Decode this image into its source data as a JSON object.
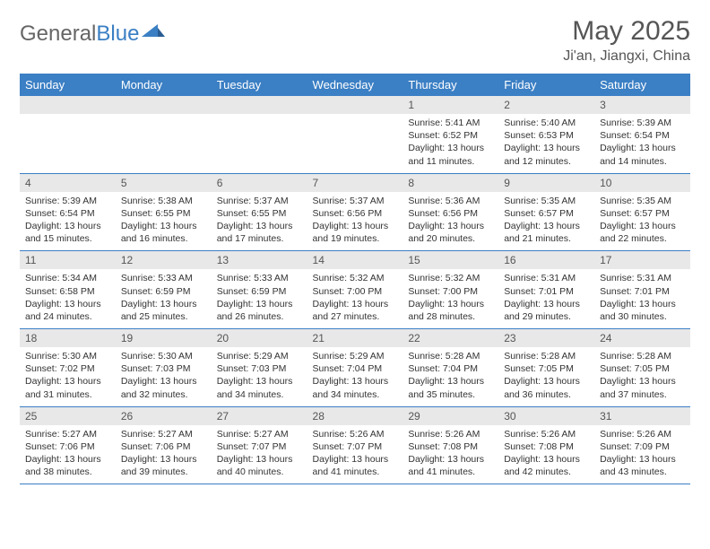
{
  "brand": {
    "part1": "General",
    "part2": "Blue"
  },
  "title": "May 2025",
  "location": "Ji'an, Jiangxi, China",
  "header_bg": "#3b7fc4",
  "day_header_bg": "#e8e8e8",
  "border_color": "#3b7fc4",
  "weekdays": [
    "Sunday",
    "Monday",
    "Tuesday",
    "Wednesday",
    "Thursday",
    "Friday",
    "Saturday"
  ],
  "weeks": [
    [
      {
        "day": "",
        "lines": []
      },
      {
        "day": "",
        "lines": []
      },
      {
        "day": "",
        "lines": []
      },
      {
        "day": "",
        "lines": []
      },
      {
        "day": "1",
        "lines": [
          "Sunrise: 5:41 AM",
          "Sunset: 6:52 PM",
          "Daylight: 13 hours and 11 minutes."
        ]
      },
      {
        "day": "2",
        "lines": [
          "Sunrise: 5:40 AM",
          "Sunset: 6:53 PM",
          "Daylight: 13 hours and 12 minutes."
        ]
      },
      {
        "day": "3",
        "lines": [
          "Sunrise: 5:39 AM",
          "Sunset: 6:54 PM",
          "Daylight: 13 hours and 14 minutes."
        ]
      }
    ],
    [
      {
        "day": "4",
        "lines": [
          "Sunrise: 5:39 AM",
          "Sunset: 6:54 PM",
          "Daylight: 13 hours and 15 minutes."
        ]
      },
      {
        "day": "5",
        "lines": [
          "Sunrise: 5:38 AM",
          "Sunset: 6:55 PM",
          "Daylight: 13 hours and 16 minutes."
        ]
      },
      {
        "day": "6",
        "lines": [
          "Sunrise: 5:37 AM",
          "Sunset: 6:55 PM",
          "Daylight: 13 hours and 17 minutes."
        ]
      },
      {
        "day": "7",
        "lines": [
          "Sunrise: 5:37 AM",
          "Sunset: 6:56 PM",
          "Daylight: 13 hours and 19 minutes."
        ]
      },
      {
        "day": "8",
        "lines": [
          "Sunrise: 5:36 AM",
          "Sunset: 6:56 PM",
          "Daylight: 13 hours and 20 minutes."
        ]
      },
      {
        "day": "9",
        "lines": [
          "Sunrise: 5:35 AM",
          "Sunset: 6:57 PM",
          "Daylight: 13 hours and 21 minutes."
        ]
      },
      {
        "day": "10",
        "lines": [
          "Sunrise: 5:35 AM",
          "Sunset: 6:57 PM",
          "Daylight: 13 hours and 22 minutes."
        ]
      }
    ],
    [
      {
        "day": "11",
        "lines": [
          "Sunrise: 5:34 AM",
          "Sunset: 6:58 PM",
          "Daylight: 13 hours and 24 minutes."
        ]
      },
      {
        "day": "12",
        "lines": [
          "Sunrise: 5:33 AM",
          "Sunset: 6:59 PM",
          "Daylight: 13 hours and 25 minutes."
        ]
      },
      {
        "day": "13",
        "lines": [
          "Sunrise: 5:33 AM",
          "Sunset: 6:59 PM",
          "Daylight: 13 hours and 26 minutes."
        ]
      },
      {
        "day": "14",
        "lines": [
          "Sunrise: 5:32 AM",
          "Sunset: 7:00 PM",
          "Daylight: 13 hours and 27 minutes."
        ]
      },
      {
        "day": "15",
        "lines": [
          "Sunrise: 5:32 AM",
          "Sunset: 7:00 PM",
          "Daylight: 13 hours and 28 minutes."
        ]
      },
      {
        "day": "16",
        "lines": [
          "Sunrise: 5:31 AM",
          "Sunset: 7:01 PM",
          "Daylight: 13 hours and 29 minutes."
        ]
      },
      {
        "day": "17",
        "lines": [
          "Sunrise: 5:31 AM",
          "Sunset: 7:01 PM",
          "Daylight: 13 hours and 30 minutes."
        ]
      }
    ],
    [
      {
        "day": "18",
        "lines": [
          "Sunrise: 5:30 AM",
          "Sunset: 7:02 PM",
          "Daylight: 13 hours and 31 minutes."
        ]
      },
      {
        "day": "19",
        "lines": [
          "Sunrise: 5:30 AM",
          "Sunset: 7:03 PM",
          "Daylight: 13 hours and 32 minutes."
        ]
      },
      {
        "day": "20",
        "lines": [
          "Sunrise: 5:29 AM",
          "Sunset: 7:03 PM",
          "Daylight: 13 hours and 34 minutes."
        ]
      },
      {
        "day": "21",
        "lines": [
          "Sunrise: 5:29 AM",
          "Sunset: 7:04 PM",
          "Daylight: 13 hours and 34 minutes."
        ]
      },
      {
        "day": "22",
        "lines": [
          "Sunrise: 5:28 AM",
          "Sunset: 7:04 PM",
          "Daylight: 13 hours and 35 minutes."
        ]
      },
      {
        "day": "23",
        "lines": [
          "Sunrise: 5:28 AM",
          "Sunset: 7:05 PM",
          "Daylight: 13 hours and 36 minutes."
        ]
      },
      {
        "day": "24",
        "lines": [
          "Sunrise: 5:28 AM",
          "Sunset: 7:05 PM",
          "Daylight: 13 hours and 37 minutes."
        ]
      }
    ],
    [
      {
        "day": "25",
        "lines": [
          "Sunrise: 5:27 AM",
          "Sunset: 7:06 PM",
          "Daylight: 13 hours and 38 minutes."
        ]
      },
      {
        "day": "26",
        "lines": [
          "Sunrise: 5:27 AM",
          "Sunset: 7:06 PM",
          "Daylight: 13 hours and 39 minutes."
        ]
      },
      {
        "day": "27",
        "lines": [
          "Sunrise: 5:27 AM",
          "Sunset: 7:07 PM",
          "Daylight: 13 hours and 40 minutes."
        ]
      },
      {
        "day": "28",
        "lines": [
          "Sunrise: 5:26 AM",
          "Sunset: 7:07 PM",
          "Daylight: 13 hours and 41 minutes."
        ]
      },
      {
        "day": "29",
        "lines": [
          "Sunrise: 5:26 AM",
          "Sunset: 7:08 PM",
          "Daylight: 13 hours and 41 minutes."
        ]
      },
      {
        "day": "30",
        "lines": [
          "Sunrise: 5:26 AM",
          "Sunset: 7:08 PM",
          "Daylight: 13 hours and 42 minutes."
        ]
      },
      {
        "day": "31",
        "lines": [
          "Sunrise: 5:26 AM",
          "Sunset: 7:09 PM",
          "Daylight: 13 hours and 43 minutes."
        ]
      }
    ]
  ]
}
